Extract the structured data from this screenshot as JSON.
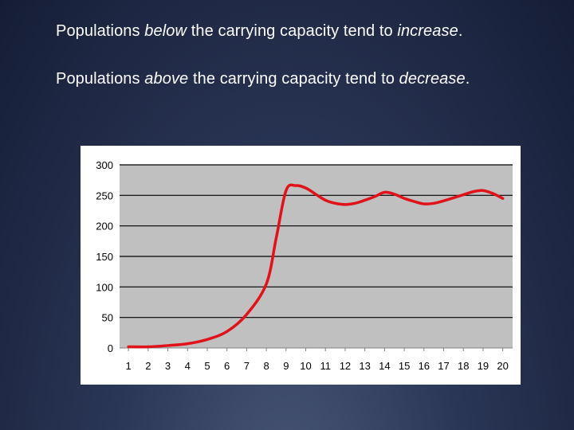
{
  "slide": {
    "line1": {
      "prefix": "Populations ",
      "emph": "below",
      "middle": " the carrying capacity tend to ",
      "emph2": "increase",
      "suffix": "."
    },
    "line2": {
      "prefix": "Populations ",
      "emph": "above",
      "middle": " the carrying capacity tend to ",
      "emph2": "decrease",
      "suffix": "."
    }
  },
  "chart_data": {
    "type": "line",
    "title": "",
    "xlabel": "",
    "ylabel": "",
    "x": [
      1,
      2,
      3,
      4,
      5,
      6,
      7,
      8,
      8.5,
      9,
      9.5,
      10,
      10.5,
      11,
      11.5,
      12,
      12.5,
      13,
      13.5,
      14,
      14.5,
      15,
      15.5,
      16,
      16.5,
      17,
      17.5,
      18,
      18.5,
      19,
      19.5,
      20
    ],
    "series": [
      {
        "values": [
          2,
          2,
          4,
          7,
          14,
          27,
          55,
          105,
          180,
          258,
          266,
          262,
          252,
          242,
          237,
          235,
          237,
          242,
          248,
          255,
          252,
          245,
          240,
          236,
          237,
          241,
          246,
          251,
          256,
          258,
          253,
          245
        ]
      }
    ],
    "xlim": [
      0.55,
      20.5
    ],
    "ylim": [
      0,
      300
    ],
    "yticks": [
      0,
      50,
      100,
      150,
      200,
      250,
      300
    ],
    "xticks": [
      1,
      2,
      3,
      4,
      5,
      6,
      7,
      8,
      9,
      10,
      11,
      12,
      13,
      14,
      15,
      16,
      17,
      18,
      19,
      20
    ],
    "grid": "horizontal",
    "colors": {
      "line": "#e0121a",
      "plot_bg": "#c0c0c0",
      "panel_bg": "#ffffff",
      "grid": "#000000"
    }
  }
}
